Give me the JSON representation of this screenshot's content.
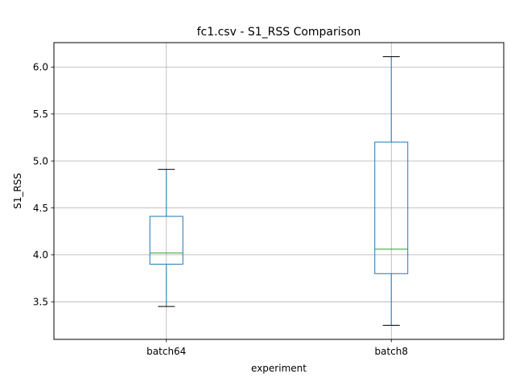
{
  "chart_data": {
    "type": "box",
    "title": "fc1.csv - S1_RSS Comparison",
    "xlabel": "experiment",
    "ylabel": "S1_RSS",
    "categories": [
      "batch64",
      "batch8"
    ],
    "boxes": [
      {
        "name": "batch64",
        "whisker_low": 3.45,
        "q1": 3.9,
        "median": 4.02,
        "q3": 4.41,
        "whisker_high": 4.91
      },
      {
        "name": "batch8",
        "whisker_low": 3.25,
        "q1": 3.8,
        "median": 4.06,
        "q3": 5.2,
        "whisker_high": 6.11
      }
    ],
    "yticks": [
      "3.5",
      "4.0",
      "4.5",
      "5.0",
      "5.5",
      "6.0"
    ],
    "ylim": [
      3.1,
      6.26
    ],
    "grid": true,
    "colors": {
      "box": "#1f77b4",
      "median": "#2ca02c",
      "whisker_cap": "#000000",
      "grid": "#b0b0b0"
    }
  }
}
